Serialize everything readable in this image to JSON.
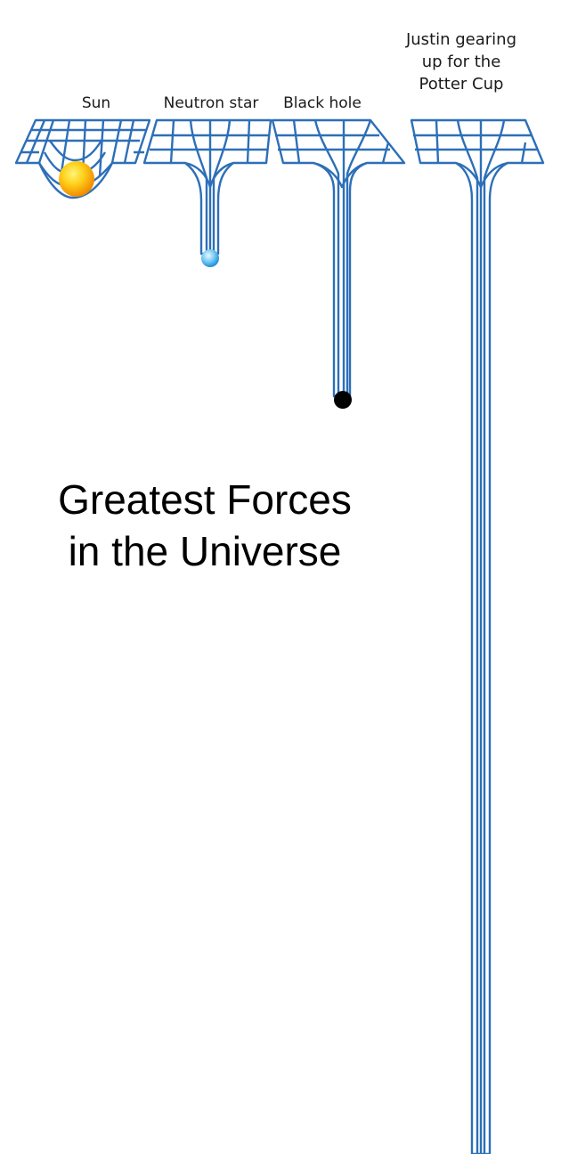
{
  "labels": {
    "sun": "Sun",
    "neutron_star": "Neutron star",
    "black_hole": "Black hole",
    "justin": [
      "Justin gearing",
      "up for the",
      "Potter Cup"
    ]
  },
  "headline": [
    "Greatest Forces",
    "in the Universe"
  ],
  "colors": {
    "grid": "#2d6fb8",
    "grid_light": "#e4eef9",
    "sun_core": "#ffd21c",
    "sun_edge": "#f08a00",
    "neutron_core": "#bfe9ff",
    "neutron_edge": "#1b8fd6",
    "black_hole": "#000000"
  },
  "objects": [
    {
      "name": "sun",
      "body": "sun-icon"
    },
    {
      "name": "neutron-star",
      "body": "neutron-star-icon"
    },
    {
      "name": "black-hole",
      "body": "black-hole-icon"
    },
    {
      "name": "justin",
      "body": ""
    }
  ]
}
